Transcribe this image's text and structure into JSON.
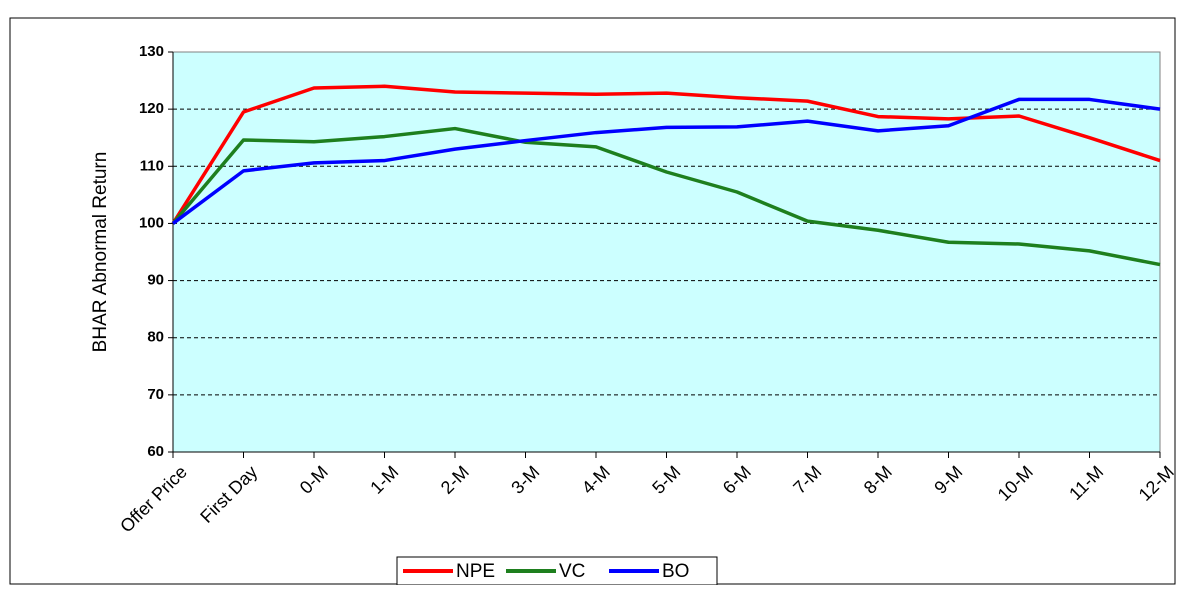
{
  "chart_data": {
    "type": "line",
    "y_label": "BHAR Abnormal Return",
    "categories": [
      "Offer Price",
      "First Day",
      "0-M",
      "1-M",
      "2-M",
      "3-M",
      "4-M",
      "5-M",
      "6-M",
      "7-M",
      "8-M",
      "9-M",
      "10-M",
      "11-M",
      "12-M"
    ],
    "series": [
      {
        "name": "NPE",
        "color": "#ff0000",
        "values": [
          100,
          119.5,
          123.7,
          124,
          123,
          122.8,
          122.6,
          122.8,
          122,
          121.4,
          118.7,
          118.3,
          118.8,
          115,
          111
        ]
      },
      {
        "name": "VC",
        "color": "#1e7f1e",
        "values": [
          100,
          114.6,
          114.3,
          115.2,
          116.6,
          114.2,
          113.4,
          109,
          105.5,
          100.4,
          98.8,
          96.7,
          96.4,
          95.2,
          92.8
        ]
      },
      {
        "name": "BO",
        "color": "#0000ff",
        "values": [
          100,
          109.2,
          110.6,
          111,
          113,
          114.5,
          115.9,
          116.8,
          116.9,
          117.9,
          116.2,
          117.1,
          121.7,
          121.7,
          120
        ]
      }
    ],
    "ylim": [
      60,
      130
    ],
    "yticks": [
      60,
      70,
      80,
      90,
      100,
      110,
      120,
      130
    ],
    "grid": true,
    "legend": "bottom",
    "plot_background": "#ccffff"
  }
}
